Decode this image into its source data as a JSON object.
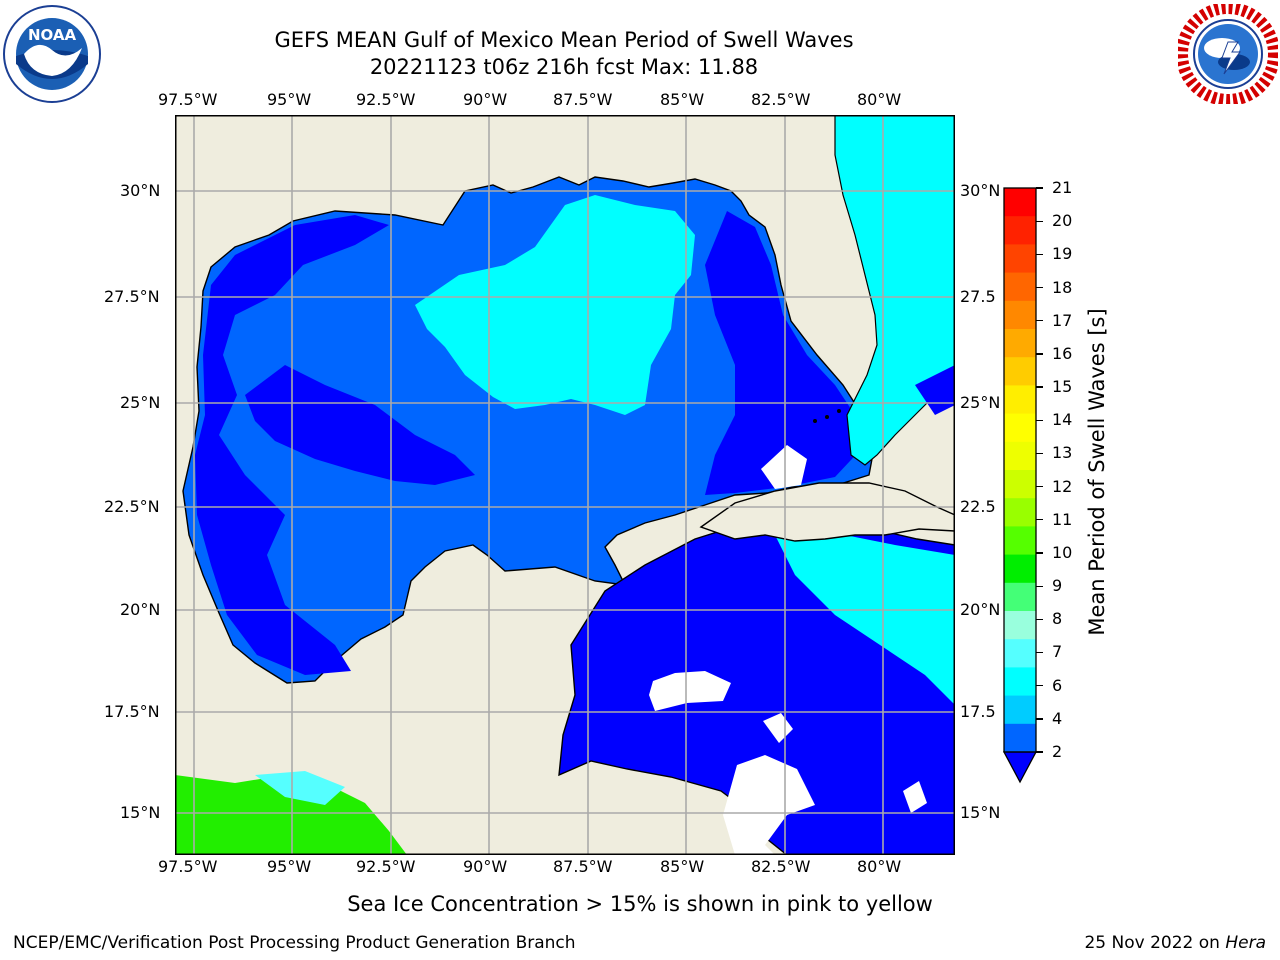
{
  "header": {
    "title_line1": "GEFS MEAN Gulf of Mexico Mean Period of Swell Waves",
    "title_line2": "20221123 t06z 216h fcst   Max: 11.88"
  },
  "logos": {
    "left": {
      "name": "noaa-logo",
      "text": "NOAA"
    },
    "right": {
      "name": "nws-logo"
    }
  },
  "map": {
    "lon_labels": [
      "97.5°W",
      "95°W",
      "92.5°W",
      "90°W",
      "87.5°W",
      "85°W",
      "82.5°W",
      "80°W"
    ],
    "lat_labels_left": [
      "30°N",
      "27.5°N",
      "25°N",
      "22.5°N",
      "20°N",
      "17.5°N",
      "15°N"
    ],
    "lat_labels_right": [
      "30°N",
      "27.5",
      "25°N",
      "22.5",
      "20°N",
      "17.5",
      "15°N"
    ],
    "colors": {
      "land": "#efedde",
      "sea_blue": "#0066ff",
      "deep_blue": "#0000ff",
      "cyan": "#00ffff",
      "green": "#00ff00"
    }
  },
  "colorbar": {
    "label": "Mean Period of Swell Waves [s]",
    "ticks": [
      "21",
      "20",
      "19",
      "18",
      "17",
      "16",
      "15",
      "14",
      "13",
      "12",
      "11",
      "10",
      "9",
      "8",
      "7",
      "6",
      "4",
      "2"
    ],
    "colors": [
      "#ff0000",
      "#ff2200",
      "#ff4400",
      "#ff6600",
      "#ff8800",
      "#ffaa00",
      "#ffcc00",
      "#ffee00",
      "#ffff00",
      "#eeff00",
      "#ccff00",
      "#99ff00",
      "#55ff00",
      "#00ee00",
      "#44ff77",
      "#99ffdd",
      "#55ffff",
      "#00ffff",
      "#00ccff",
      "#0066ff"
    ]
  },
  "note": "Sea Ice Concentration > 15% is shown in pink to yellow",
  "footer": {
    "left": "NCEP/EMC/Verification Post Processing Product Generation Branch",
    "right_date": "25 Nov 2022 on ",
    "right_host": "Hera"
  }
}
